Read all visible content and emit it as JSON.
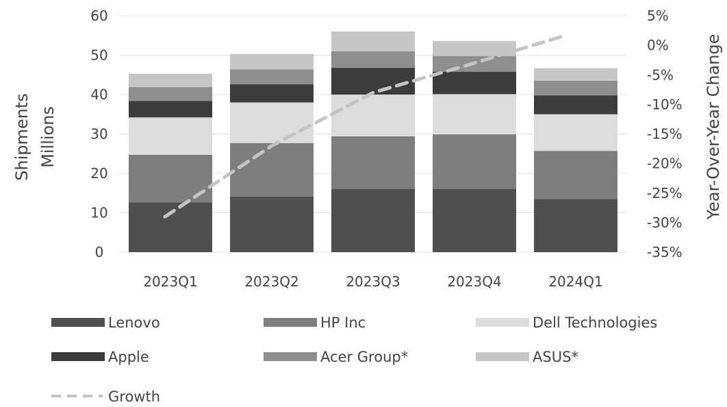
{
  "chart_data": {
    "type": "bar",
    "stacked": true,
    "categories": [
      "2023Q1",
      "2023Q2",
      "2023Q3",
      "2023Q4",
      "2024Q1"
    ],
    "ylabel": [
      "Shipments",
      "Millions"
    ],
    "y2label": "Year-Over-Year Change",
    "ylim": [
      0,
      60
    ],
    "yticks": [
      "0",
      "10",
      "20",
      "30",
      "40",
      "50",
      "60"
    ],
    "y2lim": [
      -35,
      5
    ],
    "y2ticks": [
      "-35%",
      "-30%",
      "-25%",
      "-20%",
      "-15%",
      "-10%",
      "-5%",
      "0%",
      "5%"
    ],
    "grid": true,
    "legend_position": "bottom",
    "series": [
      {
        "name": "Lenovo",
        "color": "#4f4f4f",
        "values": [
          12.6,
          14.1,
          16.0,
          16.0,
          13.5
        ]
      },
      {
        "name": "HP Inc",
        "color": "#7e7e7e",
        "values": [
          12.1,
          13.6,
          13.4,
          13.9,
          12.2
        ]
      },
      {
        "name": "Dell Technologies",
        "color": "#dcdcdc",
        "values": [
          9.5,
          10.3,
          10.6,
          10.2,
          9.3
        ]
      },
      {
        "name": "Apple",
        "color": "#3c3c3c",
        "values": [
          4.2,
          4.6,
          6.8,
          5.7,
          4.8
        ]
      },
      {
        "name": "Acer Group*",
        "color": "#8e8e8e",
        "values": [
          3.5,
          3.8,
          4.2,
          4.0,
          3.7
        ]
      },
      {
        "name": "ASUS*",
        "color": "#c6c6c6",
        "values": [
          3.4,
          3.9,
          5.0,
          3.8,
          3.2
        ]
      }
    ],
    "line_series": {
      "name": "Growth",
      "color": "#c4c4c4",
      "axis": "y2",
      "values": [
        -29.0,
        -17.0,
        -8.0,
        -3.0,
        1.5
      ]
    }
  }
}
